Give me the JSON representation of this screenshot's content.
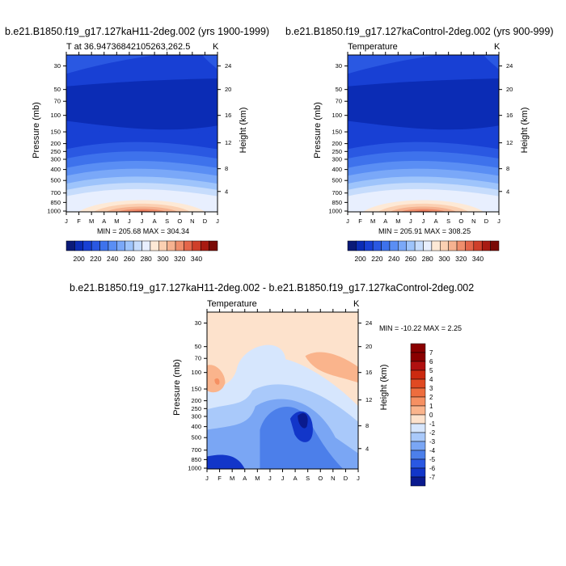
{
  "chart_data": [
    {
      "type": "heatmap",
      "title": "b.e21.B1850.f19_g17.127kaH11-2deg.002 (yrs 1900-1999)",
      "subtitle_left": "T at 36.94736842105263,262.5",
      "subtitle_right": "K",
      "xlabel": "",
      "ylabel": "Pressure (mb)",
      "y2label": "Height (km)",
      "x_ticks": [
        "J",
        "F",
        "M",
        "A",
        "M",
        "J",
        "J",
        "A",
        "S",
        "O",
        "N",
        "D",
        "J"
      ],
      "y_ticks": [
        "30",
        "50",
        "70",
        "100",
        "150",
        "200",
        "250",
        "300",
        "400",
        "500",
        "700",
        "850",
        "1000"
      ],
      "y2_ticks": [
        "24",
        "20",
        "16",
        "12",
        "8",
        "4"
      ],
      "stats": "MIN = 205.68 MAX = 304.34",
      "colorbar_labels": [
        "200",
        "220",
        "240",
        "260",
        "280",
        "300",
        "320",
        "340"
      ],
      "min": 205.68,
      "max": 304.34
    },
    {
      "type": "heatmap",
      "title": "b.e21.B1850.f19_g17.127kaControl-2deg.002 (yrs 900-999)",
      "subtitle_left": "Temperature",
      "subtitle_right": "K",
      "ylabel": "Pressure (mb)",
      "y2label": "Height (km)",
      "x_ticks": [
        "J",
        "F",
        "M",
        "A",
        "M",
        "J",
        "J",
        "A",
        "S",
        "O",
        "N",
        "D",
        "J"
      ],
      "y_ticks": [
        "30",
        "50",
        "70",
        "100",
        "150",
        "200",
        "250",
        "300",
        "400",
        "500",
        "700",
        "850",
        "1000"
      ],
      "y2_ticks": [
        "24",
        "20",
        "16",
        "12",
        "8",
        "4"
      ],
      "stats": "MIN = 205.91 MAX = 308.25",
      "colorbar_labels": [
        "200",
        "220",
        "240",
        "260",
        "280",
        "300",
        "320",
        "340"
      ],
      "min": 205.91,
      "max": 308.25
    },
    {
      "type": "heatmap",
      "title": "b.e21.B1850.f19_g17.127kaH11-2deg.002 - b.e21.B1850.f19_g17.127kaControl-2deg.002",
      "subtitle_left": "Temperature",
      "subtitle_right": "K",
      "ylabel": "Pressure (mb)",
      "y2label": "Height (km)",
      "x_ticks": [
        "J",
        "F",
        "M",
        "A",
        "M",
        "J",
        "J",
        "A",
        "S",
        "O",
        "N",
        "D",
        "J"
      ],
      "y_ticks": [
        "30",
        "50",
        "70",
        "100",
        "150",
        "200",
        "250",
        "300",
        "400",
        "500",
        "700",
        "850",
        "1000"
      ],
      "y2_ticks": [
        "24",
        "20",
        "16",
        "12",
        "8",
        "4"
      ],
      "stats": "MIN = -10.22 MAX =   2.25",
      "colorbar_labels": [
        "7",
        "6",
        "5",
        "4",
        "3",
        "2",
        "1",
        "0",
        "-1",
        "-2",
        "-3",
        "-4",
        "-5",
        "-6",
        "-7"
      ],
      "min": -10.22,
      "max": 2.25
    }
  ],
  "palette": {
    "abs": [
      "#0a1a78",
      "#0b2cb5",
      "#1840d4",
      "#2a58e2",
      "#3e72ec",
      "#5a8ef4",
      "#7aa8f8",
      "#9ec4fb",
      "#c6dcfc",
      "#e8effe",
      "#fde9d6",
      "#fbd0b2",
      "#f6b290",
      "#ef8e6c",
      "#e4664a",
      "#cf3f2a",
      "#a81b12",
      "#7a0a06"
    ],
    "diff": [
      "#8a0000",
      "#b01010",
      "#cc2a10",
      "#e04a22",
      "#ee6d3e",
      "#f69062",
      "#fab48c",
      "#fde2cc",
      "#d6e6fd",
      "#a9c9fa",
      "#7aa6f4",
      "#4c7fea",
      "#2a58e2",
      "#1236c9",
      "#0a1a8e"
    ]
  }
}
